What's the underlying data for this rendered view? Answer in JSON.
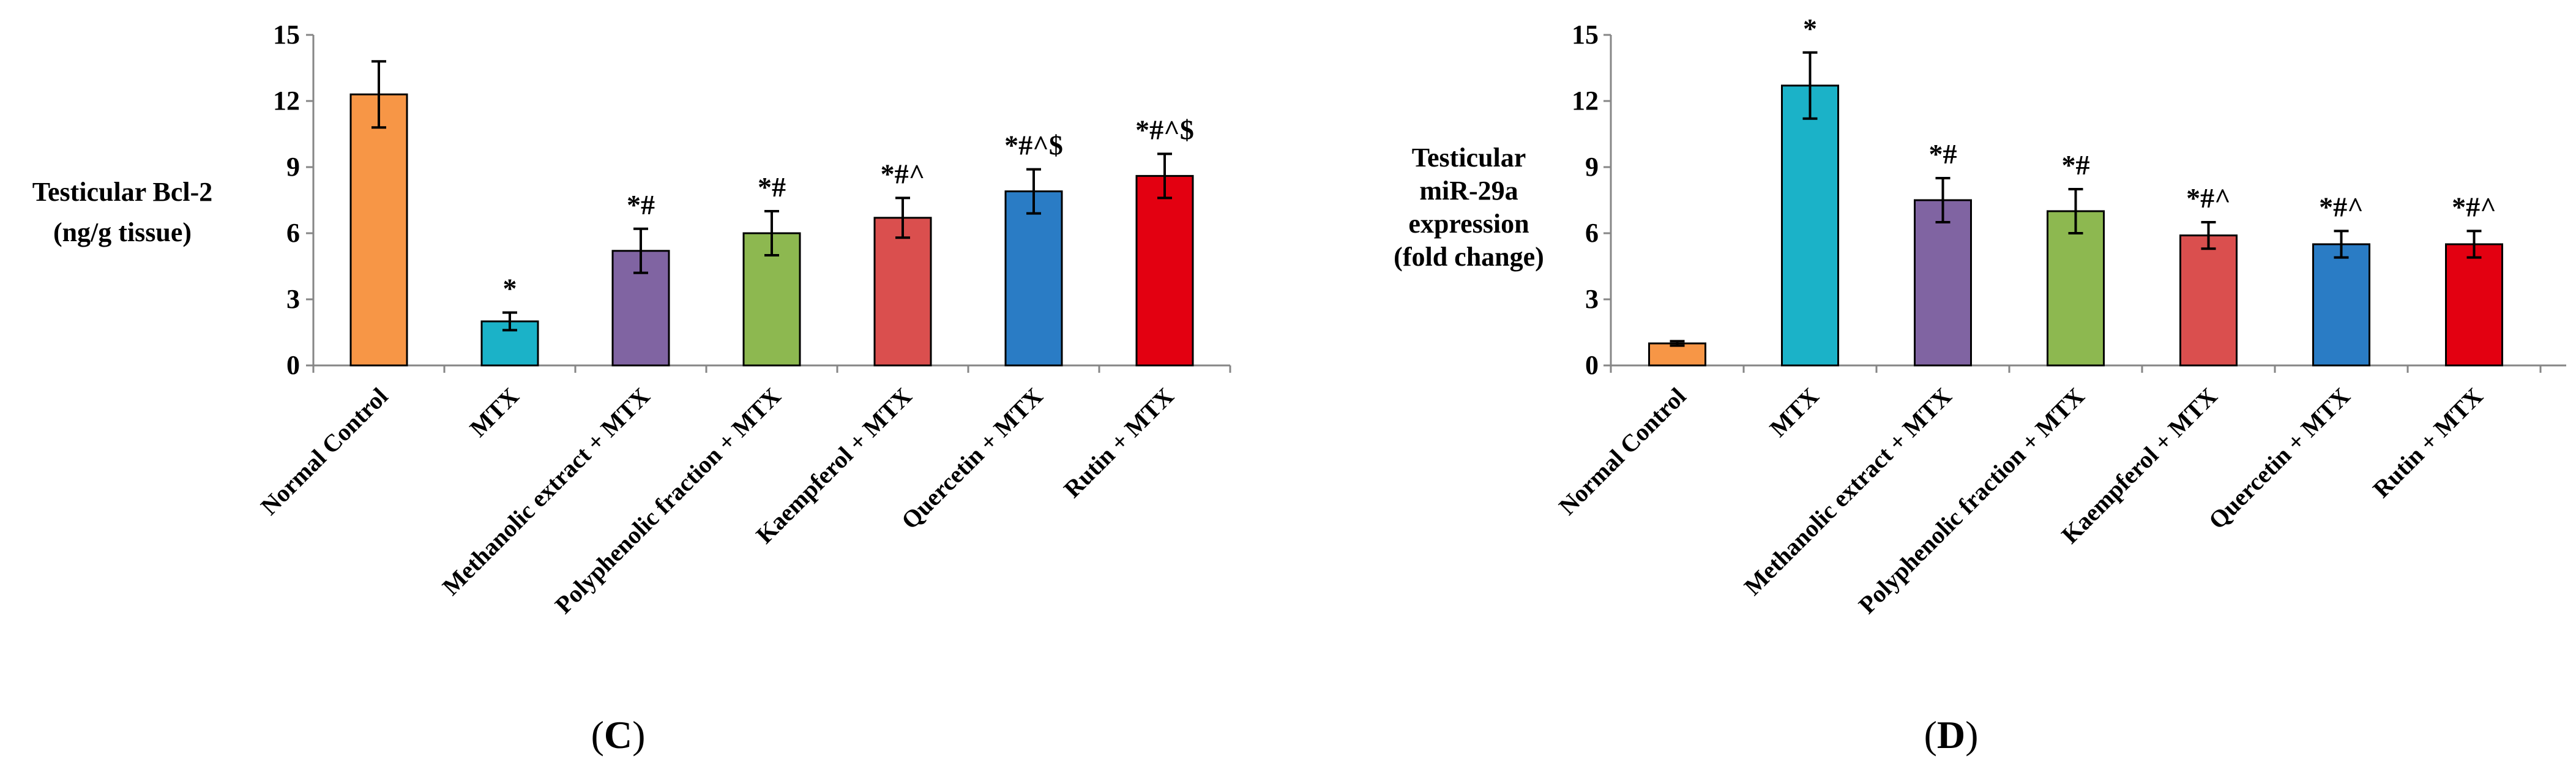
{
  "chart_data": [
    {
      "type": "bar",
      "panel_label": "C",
      "ylabel_lines": [
        "Testicular Bcl-2",
        "(ng/g tissue)"
      ],
      "ylim": [
        0,
        15
      ],
      "yticks": [
        "0",
        "3",
        "6",
        "9",
        "12",
        "15"
      ],
      "categories": [
        "Normal Control",
        "MTX",
        "Methanolic extract + MTX",
        "Polyphenolic fraction + MTX",
        "Kaempferol + MTX",
        "Quercetin + MTX",
        "Rutin + MTX"
      ],
      "values": [
        12.3,
        2.0,
        5.2,
        6.0,
        6.7,
        7.9,
        8.6
      ],
      "errors": [
        1.5,
        0.4,
        1.0,
        1.0,
        0.9,
        1.0,
        1.0
      ],
      "annotations": [
        "",
        "*",
        "*#",
        "*#",
        "*#^",
        "*#^$",
        "*#^$"
      ],
      "colors": [
        "#F79646",
        "#1BB2C8",
        "#8064A2",
        "#8DB850",
        "#DA4F4E",
        "#2A7CC5",
        "#E30011"
      ]
    },
    {
      "type": "bar",
      "panel_label": "D",
      "ylabel_lines": [
        "Testicular",
        "miR-29a",
        "expression",
        "(fold change)"
      ],
      "ylim": [
        0,
        15
      ],
      "yticks": [
        "0",
        "3",
        "6",
        "9",
        "12",
        "15"
      ],
      "categories": [
        "Normal Control",
        "MTX",
        "Methanolic extract + MTX",
        "Polyphenolic fraction + MTX",
        "Kaempferol + MTX",
        "Quercetin + MTX",
        "Rutin + MTX"
      ],
      "values": [
        1.0,
        12.7,
        7.5,
        7.0,
        5.9,
        5.5,
        5.5
      ],
      "errors": [
        0.1,
        1.5,
        1.0,
        1.0,
        0.6,
        0.6,
        0.6
      ],
      "annotations": [
        "",
        "*",
        "*#",
        "*#",
        "*#^",
        "*#^",
        "*#^"
      ],
      "colors": [
        "#F79646",
        "#1BB2C8",
        "#8064A2",
        "#8DB850",
        "#DA4F4E",
        "#2A7CC5",
        "#E30011"
      ]
    }
  ]
}
